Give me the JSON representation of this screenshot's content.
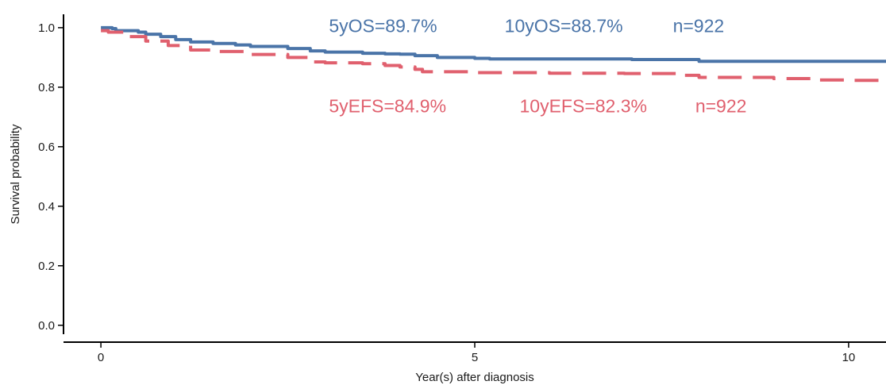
{
  "chart_data": {
    "type": "line",
    "title": "",
    "xlabel": "Year(s) after diagnosis",
    "ylabel": "Survival probability",
    "xlim": [
      -0.5,
      10.5
    ],
    "ylim": [
      -0.03,
      1.045
    ],
    "x_ticks": [
      0,
      5,
      10
    ],
    "x_tick_labels": [
      "0",
      "5",
      "10"
    ],
    "y_ticks": [
      0.0,
      0.2,
      0.4,
      0.6,
      0.8,
      1.0
    ],
    "y_tick_labels": [
      "0.0",
      "0.2",
      "0.4",
      "0.6",
      "0.8",
      "1.0"
    ],
    "grid": false,
    "legend": "none",
    "series": [
      {
        "color": "#4a74a8",
        "line_style": "solid",
        "points": [
          [
            0.0,
            1.0
          ],
          [
            0.15,
            0.997
          ],
          [
            0.2,
            0.99
          ],
          [
            0.5,
            0.985
          ],
          [
            0.6,
            0.978
          ],
          [
            0.8,
            0.97
          ],
          [
            1.0,
            0.96
          ],
          [
            1.2,
            0.952
          ],
          [
            1.5,
            0.947
          ],
          [
            1.8,
            0.942
          ],
          [
            2.0,
            0.937
          ],
          [
            2.5,
            0.93
          ],
          [
            2.8,
            0.922
          ],
          [
            3.0,
            0.918
          ],
          [
            3.5,
            0.914
          ],
          [
            3.8,
            0.912
          ],
          [
            4.0,
            0.911
          ],
          [
            4.2,
            0.906
          ],
          [
            4.5,
            0.9
          ],
          [
            5.0,
            0.897
          ],
          [
            5.2,
            0.895
          ],
          [
            6.0,
            0.895
          ],
          [
            7.0,
            0.895
          ],
          [
            7.1,
            0.893
          ],
          [
            7.5,
            0.893
          ],
          [
            8.0,
            0.887
          ],
          [
            9.0,
            0.887
          ],
          [
            10.0,
            0.887
          ],
          [
            10.5,
            0.887
          ]
        ]
      },
      {
        "color": "#e0606e",
        "line_style": "dashed",
        "points": [
          [
            0.0,
            0.99
          ],
          [
            0.1,
            0.985
          ],
          [
            0.3,
            0.97
          ],
          [
            0.6,
            0.955
          ],
          [
            0.9,
            0.94
          ],
          [
            1.2,
            0.925
          ],
          [
            1.5,
            0.92
          ],
          [
            2.0,
            0.91
          ],
          [
            2.5,
            0.9
          ],
          [
            2.8,
            0.885
          ],
          [
            3.0,
            0.882
          ],
          [
            3.5,
            0.879
          ],
          [
            3.8,
            0.873
          ],
          [
            4.0,
            0.868
          ],
          [
            4.2,
            0.86
          ],
          [
            4.3,
            0.852
          ],
          [
            5.0,
            0.849
          ],
          [
            6.0,
            0.847
          ],
          [
            7.0,
            0.846
          ],
          [
            7.8,
            0.84
          ],
          [
            8.0,
            0.833
          ],
          [
            9.0,
            0.829
          ],
          [
            9.5,
            0.824
          ],
          [
            10.0,
            0.823
          ],
          [
            10.5,
            0.823
          ]
        ]
      }
    ],
    "annotations": [
      {
        "text": "5yOS=89.7%",
        "color": "#4a74a8",
        "x": 3.05,
        "y": 0.985
      },
      {
        "text": "10yOS=88.7%",
        "color": "#4a74a8",
        "x": 5.4,
        "y": 0.985
      },
      {
        "text": "n=922",
        "color": "#4a74a8",
        "x": 7.65,
        "y": 0.985
      },
      {
        "text": "5yEFS=84.9%",
        "color": "#e0606e",
        "x": 3.05,
        "y": 0.715
      },
      {
        "text": "10yEFS=82.3%",
        "color": "#e0606e",
        "x": 5.6,
        "y": 0.715
      },
      {
        "text": "n=922",
        "color": "#e0606e",
        "x": 7.95,
        "y": 0.715
      }
    ]
  }
}
